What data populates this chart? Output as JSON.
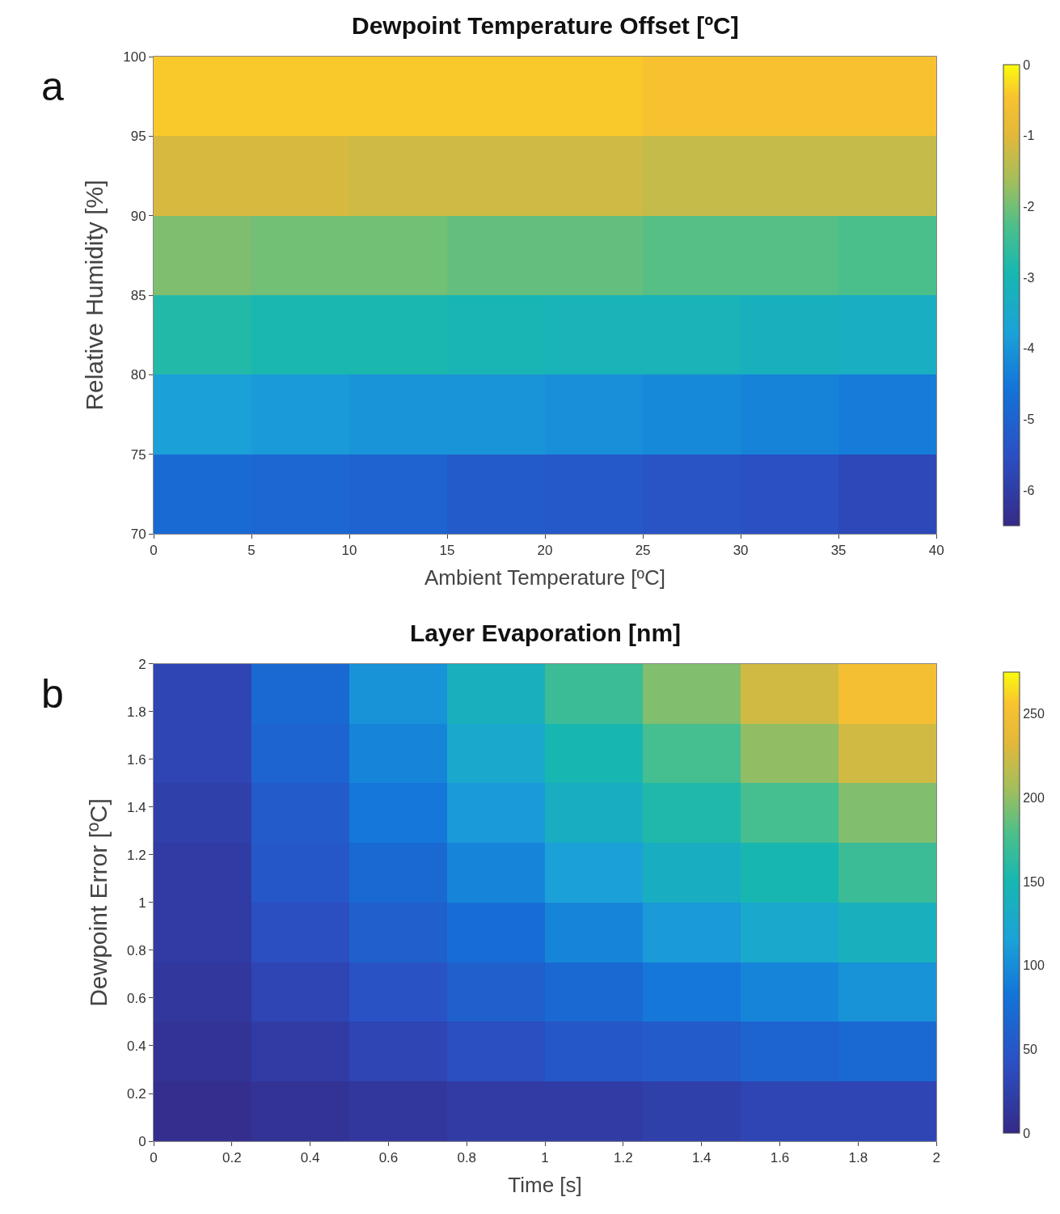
{
  "chart_data": [
    {
      "type": "heatmap",
      "title": "Dewpoint Temperature Offset [ºC]",
      "xlabel": "Ambient Temperature [ºC]",
      "ylabel": "Relative Humidity [%]",
      "annotations": [
        "a"
      ],
      "cells": [
        [
          -0.4,
          -0.4,
          -0.4,
          -0.4,
          -0.4,
          -0.5,
          -0.5,
          -0.5
        ],
        [
          -1.1,
          -1.1,
          -1.2,
          -1.2,
          -1.2,
          -1.3,
          -1.3,
          -1.3
        ],
        [
          -1.9,
          -2.0,
          -2.0,
          -2.1,
          -2.1,
          -2.2,
          -2.2,
          -2.3
        ],
        [
          -2.8,
          -2.9,
          -2.9,
          -3.0,
          -3.1,
          -3.1,
          -3.2,
          -3.3
        ],
        [
          -3.8,
          -3.9,
          -4.0,
          -4.0,
          -4.1,
          -4.2,
          -4.3,
          -4.4
        ],
        [
          -4.8,
          -4.9,
          -5.0,
          -5.2,
          -5.3,
          -5.4,
          -5.5,
          -5.7
        ]
      ],
      "xlim": [
        0,
        40
      ],
      "xticks": [
        0,
        5,
        10,
        15,
        20,
        25,
        30,
        35,
        40
      ],
      "ylim": [
        70,
        100
      ],
      "yticks": [
        70,
        75,
        80,
        85,
        90,
        95,
        100
      ],
      "clim": [
        -6.5,
        0
      ],
      "cticks": [
        -6,
        -5,
        -4,
        -3,
        -2,
        -1,
        0
      ]
    },
    {
      "type": "heatmap",
      "title": "Layer Evaporation [nm]",
      "xlabel": "Time [s]",
      "ylabel": "Dewpoint Error [ºC]",
      "annotations": [
        "b"
      ],
      "cells": [
        [
          30,
          70,
          105,
          140,
          170,
          195,
          225,
          250
        ],
        [
          30,
          65,
          95,
          125,
          150,
          175,
          200,
          225
        ],
        [
          25,
          55,
          85,
          110,
          135,
          155,
          175,
          195
        ],
        [
          20,
          50,
          70,
          95,
          115,
          135,
          150,
          170
        ],
        [
          20,
          40,
          60,
          75,
          95,
          110,
          125,
          140
        ],
        [
          15,
          30,
          45,
          60,
          70,
          85,
          95,
          105
        ],
        [
          10,
          20,
          30,
          40,
          50,
          55,
          65,
          70
        ],
        [
          5,
          10,
          15,
          20,
          20,
          25,
          30,
          30
        ]
      ],
      "xlim": [
        0,
        2
      ],
      "xticks": [
        0,
        0.2,
        0.4,
        0.6,
        0.8,
        1,
        1.2,
        1.4,
        1.6,
        1.8,
        2
      ],
      "ylim": [
        0,
        2
      ],
      "yticks": [
        0,
        0.2,
        0.4,
        0.6,
        0.8,
        1,
        1.2,
        1.4,
        1.6,
        1.8,
        2
      ],
      "clim": [
        0,
        275
      ],
      "cticks": [
        0,
        50,
        100,
        150,
        200,
        250
      ]
    }
  ]
}
